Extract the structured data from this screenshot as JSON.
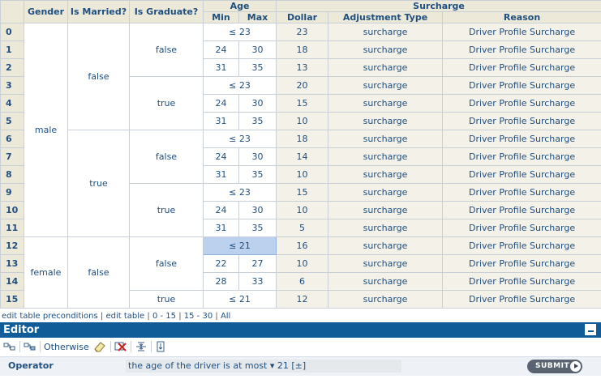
{
  "table": {
    "headers": {
      "gender": "Gender",
      "is_married": "Is Married?",
      "is_graduate": "Is Graduate?",
      "age": "Age",
      "age_min": "Min",
      "age_max": "Max",
      "surcharge": "Surcharge",
      "dollar": "Dollar",
      "adjustment_type": "Adjustment Type",
      "reason": "Reason"
    },
    "gender": {
      "male": "male",
      "female": "female"
    },
    "married": {
      "false": "false",
      "true": "true"
    },
    "graduate": {
      "false": "false",
      "true": "true"
    },
    "age_cond": {
      "le23": "≤ 23",
      "le21": "≤ 21",
      "n24": "24",
      "n30": "30",
      "n31": "31",
      "n35": "35",
      "n22": "22",
      "n27": "27",
      "n28": "28",
      "n33": "33"
    },
    "dollars": {
      "r0": "23",
      "r1": "18",
      "r2": "13",
      "r3": "20",
      "r4": "15",
      "r5": "10",
      "r6": "18",
      "r7": "14",
      "r8": "10",
      "r9": "15",
      "r10": "10",
      "r11": "5",
      "r12": "16",
      "r13": "10",
      "r14": "6",
      "r15": "12"
    },
    "adjustment_type": "surcharge",
    "reason": "Driver Profile Surcharge",
    "row_numbers": [
      "0",
      "1",
      "2",
      "3",
      "4",
      "5",
      "6",
      "7",
      "8",
      "9",
      "10",
      "11",
      "12",
      "13",
      "14",
      "15"
    ]
  },
  "footer": {
    "edit_preconditions": "edit table preconditions",
    "edit_table": "edit table",
    "page1": "0 - 15",
    "page2": "15 - 30",
    "all": "All",
    "sep": "|"
  },
  "editor": {
    "title": "Editor",
    "toolbar": {
      "otherwise": "Otherwise"
    },
    "operator_label": "Operator",
    "operator_value": "the age of the driver is at most ▾ 21 [±]",
    "submit_label": "SUBMIT"
  },
  "colors": {
    "header_bg": "#ece9d8",
    "editor_bar": "#0f5c99",
    "selected_cell": "#bcd1ee",
    "text": "#1f4f80"
  },
  "icons": [
    "add-condition-column-icon",
    "add-action-column-icon",
    "eraser-icon",
    "delete-icon",
    "split-row-icon",
    "insert-row-icon",
    "minimize-icon",
    "submit-arrow-icon"
  ]
}
